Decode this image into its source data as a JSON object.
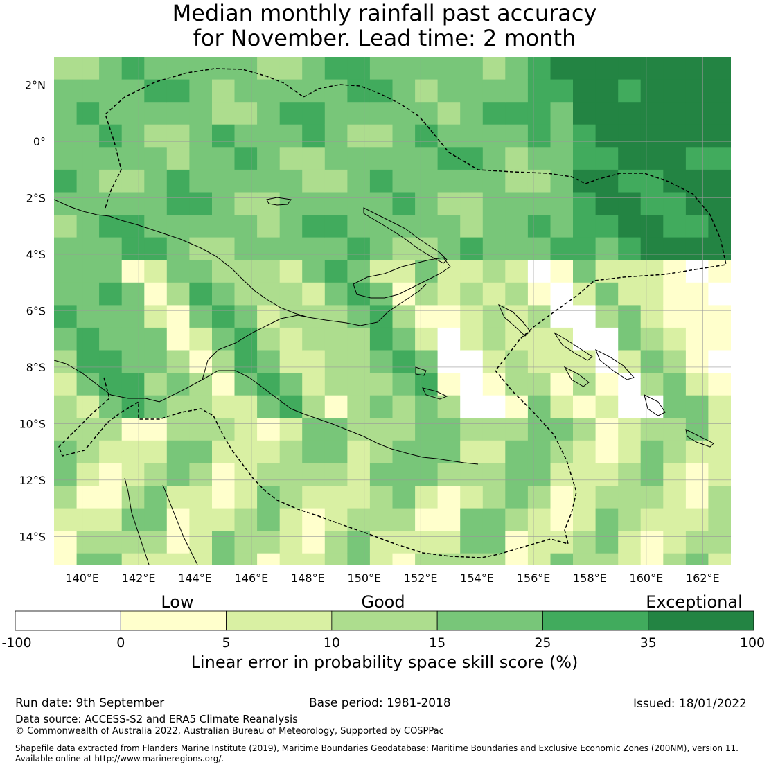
{
  "title_line1": "Median monthly rainfall past accuracy",
  "title_line2": "for November. Lead time: 2 month",
  "map": {
    "lon_range": [
      139,
      163
    ],
    "lat_range": [
      -15,
      3
    ],
    "lon_ticks": [
      "140°E",
      "142°E",
      "144°E",
      "146°E",
      "148°E",
      "150°E",
      "152°E",
      "154°E",
      "156°E",
      "158°E",
      "160°E",
      "162°E"
    ],
    "lat_ticks": [
      "2°N",
      "0°",
      "2°S",
      "4°S",
      "6°S",
      "8°S",
      "10°S",
      "12°S",
      "14°S"
    ],
    "grid": true,
    "cell_size_deg": 0.8
  },
  "colorbar": {
    "categories": [
      "Low",
      "Good",
      "Exceptional"
    ],
    "ticks": [
      "-100",
      "0",
      "5",
      "10",
      "15",
      "25",
      "35",
      "100"
    ],
    "colors": [
      "#ffffff",
      "#ffffcc",
      "#d9f0a3",
      "#addd8e",
      "#78c679",
      "#41ab5d",
      "#238443"
    ],
    "label": "Linear error in probability space skill score (%)"
  },
  "footer": {
    "run_date": "Run date: 9th September",
    "base_period": "Base period: 1981-2018",
    "issued": "Issued: 18/01/2022",
    "data_source": "Data source: ACCESS-S2 and ERA5 Climate Reanalysis",
    "copyright": "© Commonwealth of Australia 2022, Australian Bureau of Meteorology, Supported by COSPPac",
    "shapefile_line1": "Shapefile data extracted from Flanders Marine Institute (2019), Maritime Boundaries Geodatabase: Maritime Boundaries and Exclusive Economic Zones (200NM), version 11.",
    "shapefile_line2": "Available online at http://www.marineregions.org/."
  }
}
